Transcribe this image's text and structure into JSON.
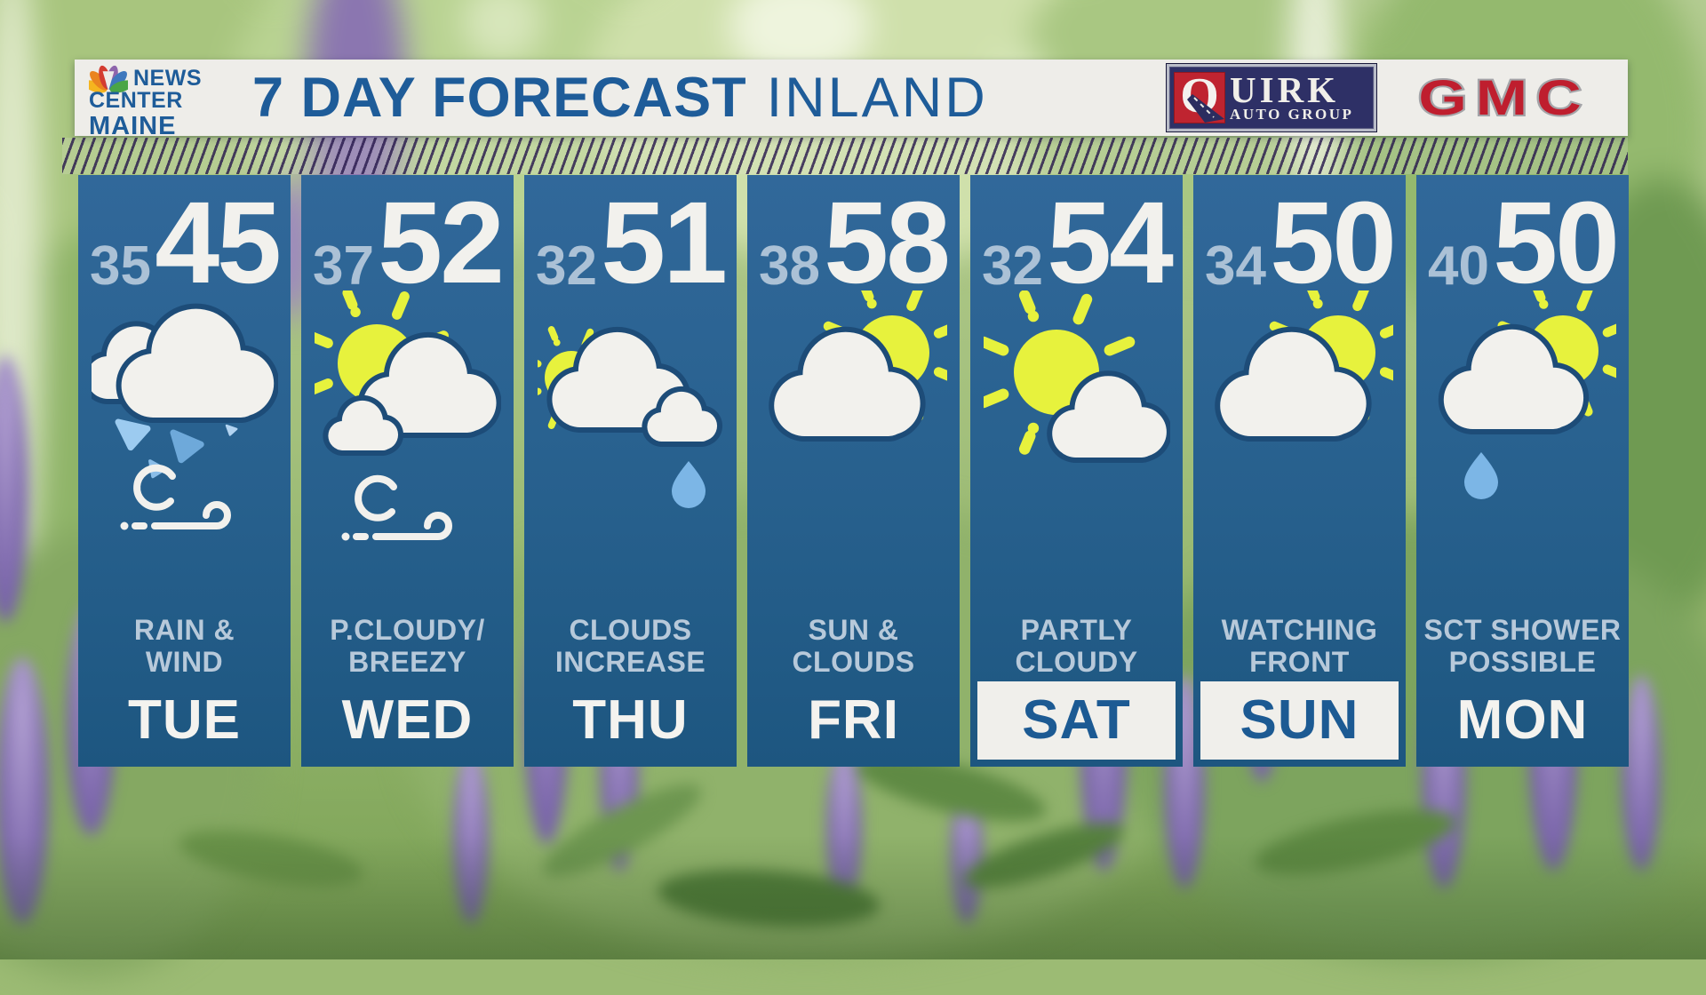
{
  "station": {
    "logo": "nbc-peacock-icon",
    "name_line1": "NEWS",
    "name_line2": "CENTER",
    "name_line3": "MAINE"
  },
  "header": {
    "title": "7 DAY FORECAST",
    "region": "INLAND"
  },
  "sponsors": {
    "quirk": {
      "initial": "Q",
      "rest": "UIRK",
      "tagline": "AUTO GROUP"
    },
    "gmc": {
      "label": "GMC"
    }
  },
  "forecast": {
    "days": [
      {
        "day": "TUE",
        "low": "35",
        "high": "45",
        "condition_line1": "RAIN &",
        "condition_line2": "WIND",
        "icon": "clouds-rain-wind-icon",
        "highlighted": false
      },
      {
        "day": "WED",
        "low": "37",
        "high": "52",
        "condition_line1": "P.CLOUDY/",
        "condition_line2": "BREEZY",
        "icon": "sun-cloud-wind-icon",
        "highlighted": false
      },
      {
        "day": "THU",
        "low": "32",
        "high": "51",
        "condition_line1": "CLOUDS",
        "condition_line2": "INCREASE",
        "icon": "sun-clouds-raindrop-icon",
        "highlighted": false
      },
      {
        "day": "FRI",
        "low": "38",
        "high": "58",
        "condition_line1": "SUN &",
        "condition_line2": "CLOUDS",
        "icon": "cloud-sun-icon",
        "highlighted": false
      },
      {
        "day": "SAT",
        "low": "32",
        "high": "54",
        "condition_line1": "PARTLY",
        "condition_line2": "CLOUDY",
        "icon": "sun-cloud-icon",
        "highlighted": true
      },
      {
        "day": "SUN",
        "low": "34",
        "high": "50",
        "condition_line1": "WATCHING",
        "condition_line2": "FRONT",
        "icon": "cloud-sun-icon",
        "highlighted": true
      },
      {
        "day": "MON",
        "low": "40",
        "high": "50",
        "condition_line1": "SCT SHOWER",
        "condition_line2": "POSSIBLE",
        "icon": "cloud-sun-raindrop-icon",
        "highlighted": false
      }
    ]
  },
  "colors": {
    "title_blue": "#1e5c99",
    "header_bg": "#eeede9",
    "card_blue_top": "#31689a",
    "card_blue_bottom": "#1d5680",
    "high_temp": "#f2f1ed",
    "low_temp": "#abc1d6",
    "condition_text": "#b7c9da",
    "day_text": "#f4f3ef",
    "highlight_bg": "#f0efeb",
    "highlight_text": "#1c5a93",
    "sun_yellow": "#e7f23d",
    "rain_blue": "#7cb6e6",
    "cloud_white": "#f2f1ed",
    "cloud_outline": "#1d4c78",
    "quirk_navy": "#2e3066",
    "quirk_red": "#bf2430",
    "gmc_red": "#bf1e2e"
  }
}
